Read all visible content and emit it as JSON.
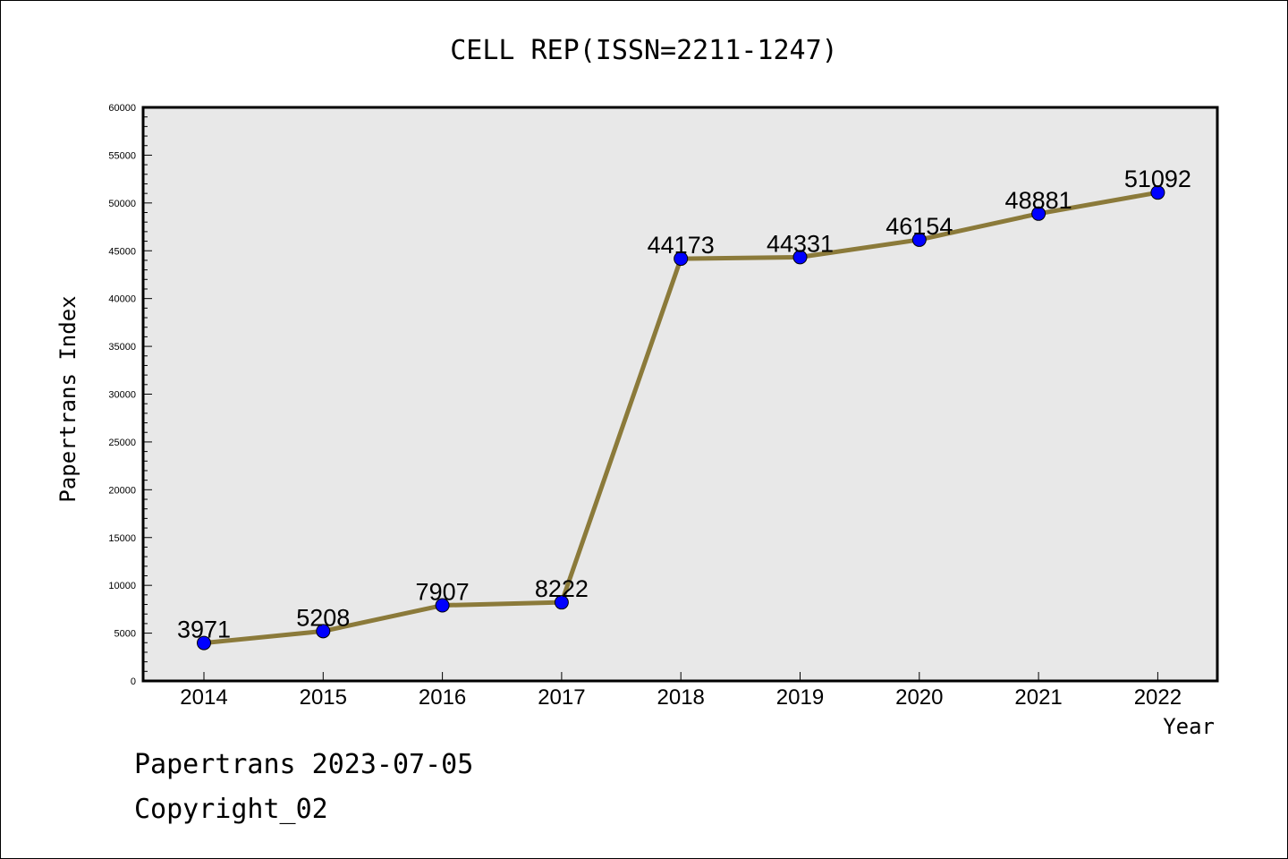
{
  "chart_data": {
    "type": "line",
    "title": "CELL REP(ISSN=2211-1247)",
    "xlabel": "Year",
    "ylabel": "Papertrans Index",
    "categories": [
      "2014",
      "2015",
      "2016",
      "2017",
      "2018",
      "2019",
      "2020",
      "2021",
      "2022"
    ],
    "series": [
      {
        "values": [
          3971,
          5208,
          7907,
          8222,
          44173,
          44331,
          46154,
          48881,
          51092
        ]
      }
    ],
    "yticks": [
      0,
      5000,
      10000,
      15000,
      20000,
      25000,
      30000,
      35000,
      40000,
      45000,
      50000,
      55000,
      60000
    ],
    "ylim": [
      0,
      60000
    ],
    "grid": false,
    "line_color": "#8b7a3a",
    "marker_color": "#0000ff",
    "plot_background": "#e8e8e8"
  },
  "footer": {
    "line1": "Papertrans 2023-07-05",
    "line2": "Copyright_02"
  }
}
